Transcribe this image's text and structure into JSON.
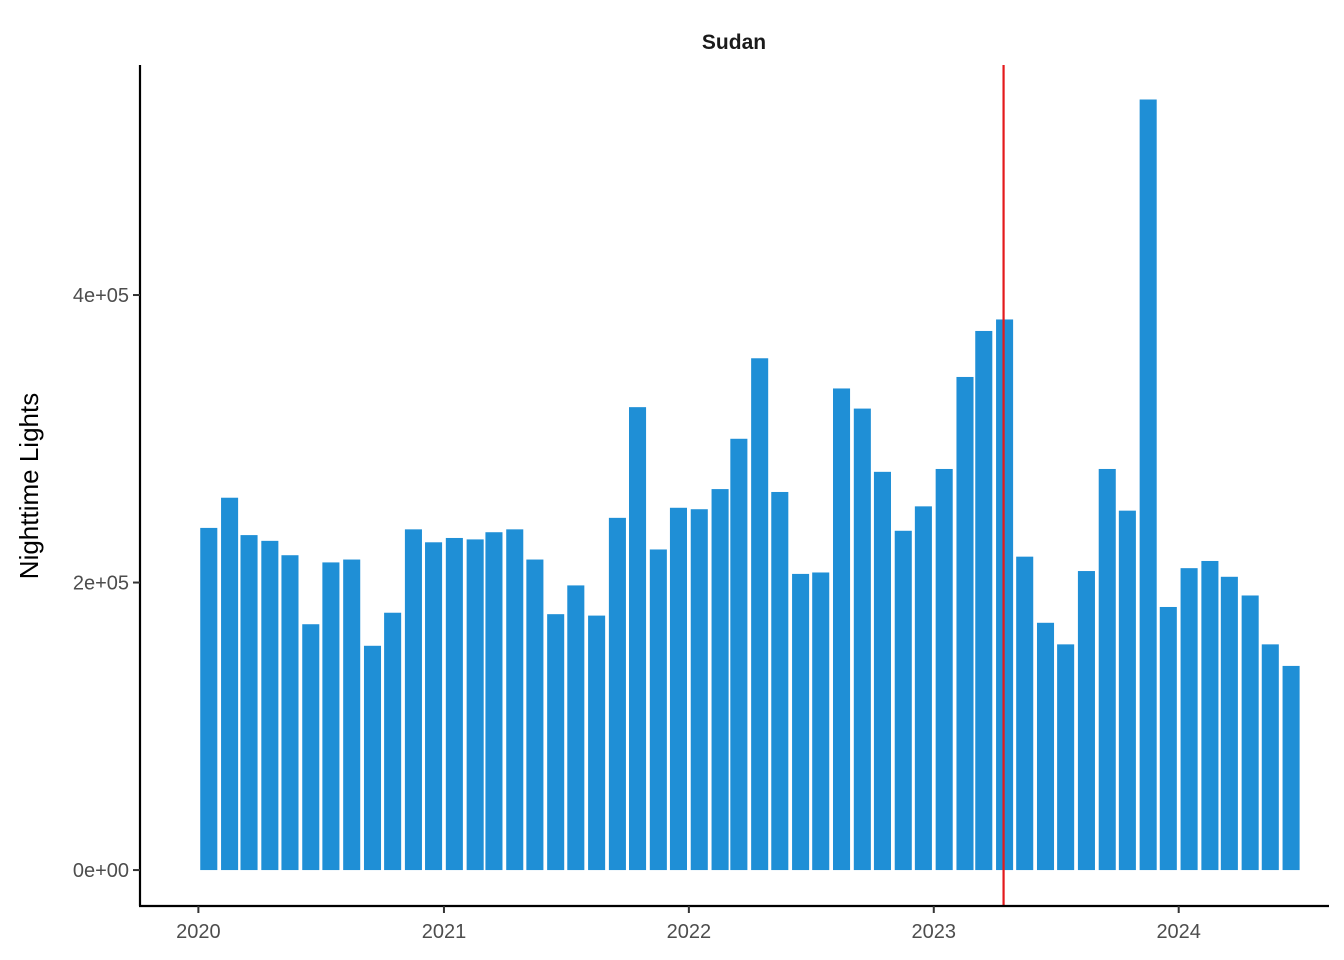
{
  "chart_data": {
    "type": "bar",
    "title": "Sudan",
    "xlabel": "",
    "ylabel": "Nighttime Lights",
    "x": [
      "2020-01",
      "2020-02",
      "2020-03",
      "2020-04",
      "2020-05",
      "2020-06",
      "2020-07",
      "2020-08",
      "2020-09",
      "2020-10",
      "2020-11",
      "2020-12",
      "2021-01",
      "2021-02",
      "2021-03",
      "2021-04",
      "2021-05",
      "2021-06",
      "2021-07",
      "2021-08",
      "2021-09",
      "2021-10",
      "2021-11",
      "2021-12",
      "2022-01",
      "2022-02",
      "2022-03",
      "2022-04",
      "2022-05",
      "2022-06",
      "2022-07",
      "2022-08",
      "2022-09",
      "2022-10",
      "2022-11",
      "2022-12",
      "2023-01",
      "2023-02",
      "2023-03",
      "2023-04",
      "2023-05",
      "2023-06",
      "2023-07",
      "2023-08",
      "2023-09",
      "2023-10",
      "2023-11",
      "2023-12",
      "2024-01",
      "2024-02",
      "2024-03",
      "2024-04",
      "2024-05",
      "2024-06"
    ],
    "values": [
      238000,
      259000,
      233000,
      229000,
      219000,
      171000,
      214000,
      216000,
      156000,
      179000,
      237000,
      228000,
      231000,
      230000,
      235000,
      237000,
      216000,
      178000,
      198000,
      177000,
      245000,
      322000,
      223000,
      252000,
      251000,
      265000,
      300000,
      356000,
      263000,
      206000,
      207000,
      335000,
      321000,
      277000,
      236000,
      253000,
      279000,
      343000,
      375000,
      383000,
      218000,
      172000,
      157000,
      208000,
      279000,
      250000,
      536000,
      183000,
      210000,
      215000,
      204000,
      191000,
      157000,
      142000
    ],
    "x_ticks": [
      "2020",
      "2021",
      "2022",
      "2023",
      "2024"
    ],
    "y_ticks": [
      "0e+00",
      "2e+05",
      "4e+05"
    ],
    "y_tick_values": [
      0,
      200000,
      400000
    ],
    "ylim": [
      -25000,
      560000
    ],
    "xlim": [
      "2019-10-06",
      "2024-08-12"
    ],
    "vline": "2023-04-15",
    "bar_color": "#1f8fd6",
    "vline_color": "#e41a1c",
    "grid": false
  }
}
